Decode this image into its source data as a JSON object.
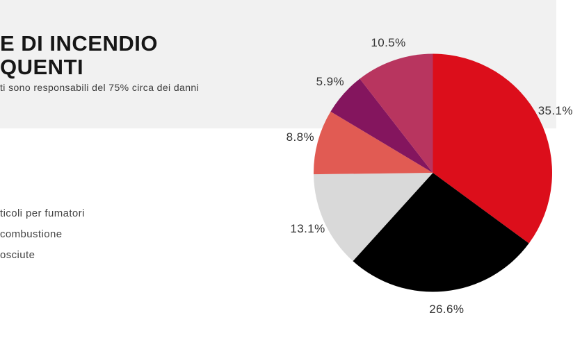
{
  "page": {
    "band_color": "#f1f1f1",
    "background": "#ffffff"
  },
  "header": {
    "title_line1": "E DI INCENDIO",
    "title_line2": "QUENTI",
    "subtitle": "ti sono responsabili del 75% circa dei danni"
  },
  "legend": {
    "items": [
      {
        "label": "ticoli per fumatori"
      },
      {
        "label": "combustione"
      },
      {
        "label": "osciute"
      }
    ]
  },
  "chart_data": {
    "type": "pie",
    "title": "E DI INCENDIO QUENTI",
    "direction": "clockwise",
    "start_angle_deg": 0,
    "legend_position": "left",
    "label_color": "#333333",
    "slices": [
      {
        "label": "35.1%",
        "value": 35.1,
        "color": "#dc0e1b"
      },
      {
        "label": "26.6%",
        "value": 26.6,
        "color": "#000000"
      },
      {
        "label": "13.1%",
        "value": 13.1,
        "color": "#d9d9d9"
      },
      {
        "label": "8.8%",
        "value": 8.8,
        "color": "#e15b53"
      },
      {
        "label": "5.9%",
        "value": 5.9,
        "color": "#84155e"
      },
      {
        "label": "10.5%",
        "value": 10.5,
        "color": "#b8355f"
      }
    ]
  }
}
